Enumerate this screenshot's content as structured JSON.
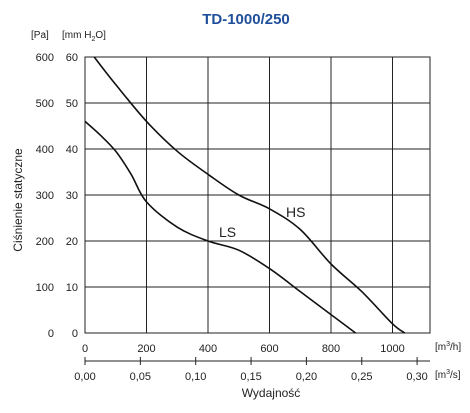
{
  "chart_data": {
    "type": "line",
    "title": "TD-1000/250",
    "ylabel": "Ciśnienie statyczne",
    "xlabel": "Wydajność",
    "y_units": {
      "pa": "[Pa]",
      "mmh2o": "[mm H",
      "mmh2o_sub": "2",
      "mmh2o_end": "O]"
    },
    "x_units": {
      "m3h": "[m",
      "m3h_sup": "3",
      "m3h_end": "/h]",
      "m3s": "[m",
      "m3s_sup": "3",
      "m3s_end": "/s]"
    },
    "ylim": [
      0,
      600
    ],
    "xlim": [
      0,
      1100
    ],
    "grid": true,
    "y_ticks_pa": [
      "0",
      "100",
      "200",
      "300",
      "400",
      "500",
      "600"
    ],
    "y_ticks_mm": [
      "0",
      "10",
      "20",
      "30",
      "40",
      "50",
      "60"
    ],
    "x_ticks_m3h": [
      "0",
      "200",
      "400",
      "600",
      "800",
      "1000"
    ],
    "x_ticks_m3s": [
      "0,00",
      "0,05",
      "0,10",
      "0,15",
      "0,20",
      "0,25",
      "0,30"
    ],
    "series": [
      {
        "name": "HS",
        "x": [
          30,
          100,
          200,
          300,
          400,
          500,
          600,
          700,
          800,
          900,
          1000,
          1040
        ],
        "y": [
          600,
          540,
          460,
          395,
          345,
          300,
          270,
          225,
          150,
          90,
          20,
          0
        ]
      },
      {
        "name": "LS",
        "x": [
          0,
          50,
          100,
          150,
          200,
          300,
          400,
          500,
          600,
          700,
          800,
          880
        ],
        "y": [
          460,
          430,
          395,
          345,
          285,
          230,
          200,
          180,
          140,
          90,
          40,
          0
        ]
      }
    ]
  }
}
